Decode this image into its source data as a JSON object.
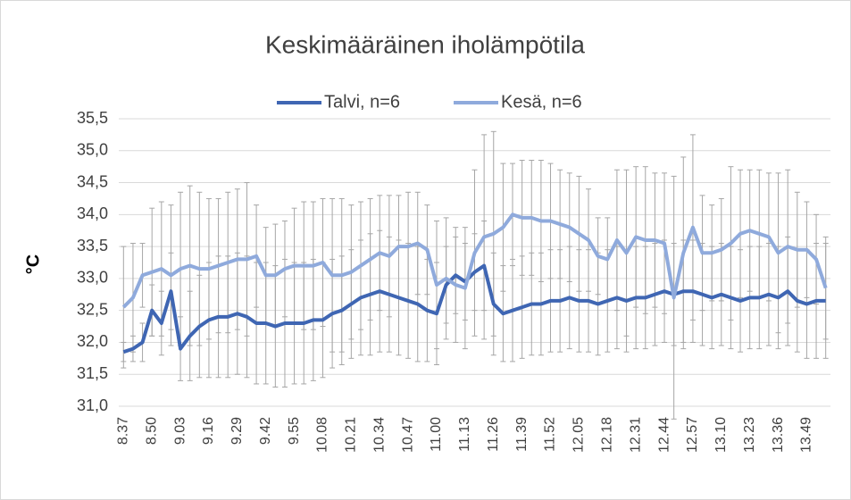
{
  "chart_data": {
    "type": "line",
    "title": "Keskimääräinen iholämpötila",
    "ylabel": "°C",
    "categories": [
      "8.37",
      null,
      null,
      "8.50",
      null,
      null,
      "9.03",
      null,
      null,
      "9.16",
      null,
      null,
      "9.29",
      null,
      null,
      "9.42",
      null,
      null,
      "9.55",
      null,
      null,
      "10.08",
      null,
      null,
      "10.21",
      null,
      null,
      "10.34",
      null,
      null,
      "10.47",
      null,
      null,
      "11.00",
      null,
      null,
      "11.13",
      null,
      null,
      "11.26",
      null,
      null,
      "11.39",
      null,
      null,
      "11.52",
      null,
      null,
      "12.05",
      null,
      null,
      "12.18",
      null,
      null,
      "12.31",
      null,
      null,
      "12.44",
      null,
      null,
      "12.57",
      null,
      null,
      "13.10",
      null,
      null,
      "13.23",
      null,
      null,
      "13.36",
      null,
      null,
      "13.49",
      null,
      null
    ],
    "series": [
      {
        "name": "Talvi, n=6",
        "color": "#3f66b3",
        "values": [
          31.85,
          31.9,
          32.0,
          32.5,
          32.3,
          32.8,
          31.9,
          32.1,
          32.25,
          32.35,
          32.4,
          32.4,
          32.45,
          32.4,
          32.3,
          32.3,
          32.25,
          32.3,
          32.3,
          32.3,
          32.35,
          32.35,
          32.45,
          32.5,
          32.6,
          32.7,
          32.75,
          32.8,
          32.75,
          32.7,
          32.65,
          32.6,
          32.5,
          32.45,
          32.9,
          33.05,
          32.95,
          33.1,
          33.2,
          32.6,
          32.45,
          32.5,
          32.55,
          32.6,
          32.6,
          32.65,
          32.65,
          32.7,
          32.65,
          32.65,
          32.6,
          32.65,
          32.7,
          32.65,
          32.7,
          32.7,
          32.75,
          32.8,
          32.75,
          32.8,
          32.8,
          32.75,
          32.7,
          32.75,
          32.7,
          32.65,
          32.7,
          32.7,
          32.75,
          32.7,
          32.8,
          32.65,
          32.6,
          32.65,
          32.65
        ],
        "errors": [
          0.15,
          0.2,
          0.3,
          0.4,
          0.5,
          0.6,
          0.5,
          0.7,
          0.8,
          0.9,
          0.95,
          0.95,
          0.95,
          0.95,
          0.95,
          0.95,
          0.95,
          1.0,
          0.95,
          0.95,
          0.95,
          0.9,
          0.85,
          0.85,
          0.85,
          0.9,
          0.95,
          0.95,
          0.9,
          0.9,
          0.9,
          0.9,
          0.8,
          0.8,
          0.6,
          0.6,
          0.6,
          0.6,
          0.7,
          0.8,
          0.75,
          0.8,
          0.8,
          0.8,
          0.8,
          0.8,
          0.8,
          0.8,
          0.8,
          0.8,
          0.8,
          0.8,
          0.8,
          0.8,
          0.8,
          0.8,
          0.8,
          0.8,
          0.8,
          0.8,
          0.8,
          0.8,
          0.8,
          0.8,
          0.8,
          0.8,
          0.8,
          0.8,
          0.8,
          0.8,
          0.85,
          0.8,
          0.85,
          0.9,
          0.9
        ]
      },
      {
        "name": "Kesä, n=6",
        "color": "#8faadc",
        "values": [
          32.55,
          32.7,
          33.05,
          33.1,
          33.15,
          33.05,
          33.15,
          33.2,
          33.15,
          33.15,
          33.2,
          33.25,
          33.3,
          33.3,
          33.35,
          33.05,
          33.05,
          33.15,
          33.2,
          33.2,
          33.2,
          33.25,
          33.05,
          33.05,
          33.1,
          33.2,
          33.3,
          33.4,
          33.35,
          33.5,
          33.5,
          33.55,
          33.45,
          32.9,
          33.0,
          32.9,
          32.85,
          33.4,
          33.65,
          33.7,
          33.8,
          34.0,
          33.95,
          33.95,
          33.9,
          33.9,
          33.85,
          33.8,
          33.7,
          33.6,
          33.35,
          33.3,
          33.6,
          33.4,
          33.65,
          33.6,
          33.6,
          33.55,
          32.7,
          33.4,
          33.8,
          33.4,
          33.4,
          33.45,
          33.55,
          33.7,
          33.75,
          33.7,
          33.65,
          33.4,
          33.5,
          33.45,
          33.45,
          33.3,
          32.85
        ],
        "errors": [
          0.95,
          0.85,
          0.5,
          1.0,
          1.05,
          1.1,
          1.2,
          1.25,
          1.2,
          1.1,
          1.05,
          1.1,
          1.1,
          1.2,
          0.8,
          0.75,
          0.8,
          0.75,
          0.9,
          1.0,
          1.0,
          1.0,
          1.2,
          1.2,
          1.05,
          1.0,
          0.95,
          0.9,
          0.95,
          0.8,
          0.85,
          0.8,
          0.7,
          1.0,
          0.95,
          0.9,
          0.95,
          1.3,
          1.6,
          1.6,
          1.0,
          0.8,
          0.9,
          0.9,
          0.95,
          0.9,
          0.85,
          0.85,
          0.9,
          0.8,
          0.6,
          0.65,
          1.1,
          1.3,
          1.1,
          1.15,
          1.05,
          1.1,
          1.9,
          1.5,
          1.45,
          0.9,
          0.75,
          0.8,
          1.2,
          1.0,
          0.95,
          1.0,
          1.0,
          1.25,
          1.2,
          0.9,
          0.75,
          0.7,
          0.8
        ]
      }
    ],
    "error_color": "#a6a6a6",
    "ylim": [
      31.0,
      35.5
    ],
    "yticks": [
      {
        "value": 31.0,
        "label": "31,0"
      },
      {
        "value": 31.5,
        "label": "31,5"
      },
      {
        "value": 32.0,
        "label": "32,0"
      },
      {
        "value": 32.5,
        "label": "32,5"
      },
      {
        "value": 33.0,
        "label": "33,0"
      },
      {
        "value": 33.5,
        "label": "33,5"
      },
      {
        "value": 34.0,
        "label": "34,0"
      },
      {
        "value": 34.5,
        "label": "34,5"
      },
      {
        "value": 35.0,
        "label": "35,0"
      },
      {
        "value": 35.5,
        "label": "35,5"
      }
    ],
    "grid": true,
    "legend": "top"
  }
}
